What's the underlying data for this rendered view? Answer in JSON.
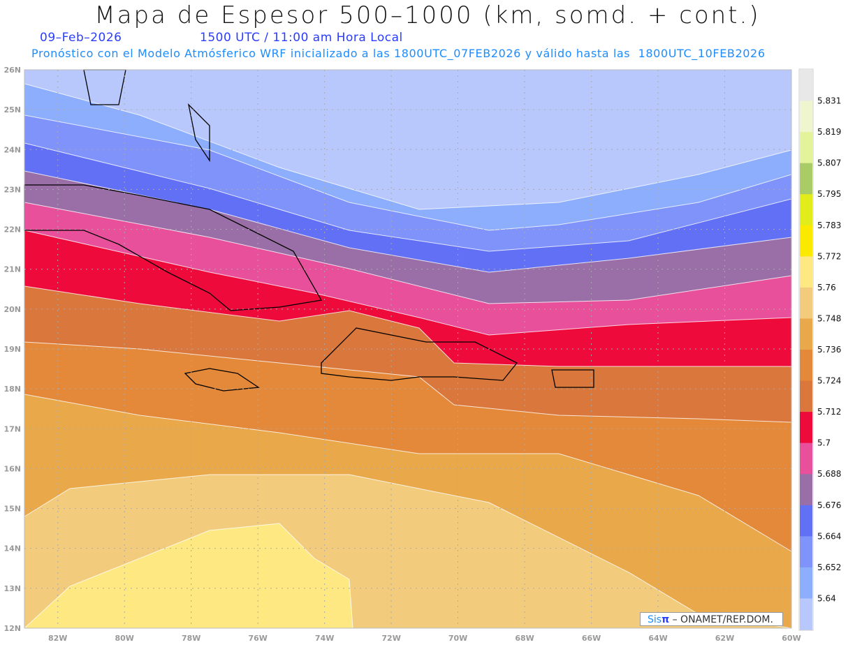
{
  "header": {
    "title": "Mapa de Espesor 500–1000 (km, somd. + cont.)",
    "date": "09–Feb–2026",
    "time": "1500 UTC / 11:00 am Hora Local",
    "description": "Pronóstico con el Modelo Atmósferico WRF inicializado a las 1800UTC_07FEB2026 y válido hasta las  1800UTC_10FEB2026"
  },
  "axes": {
    "lat_labels": [
      "26N",
      "25N",
      "24N",
      "23N",
      "22N",
      "21N",
      "20N",
      "19N",
      "18N",
      "17N",
      "16N",
      "15N",
      "14N",
      "13N",
      "12N"
    ],
    "lon_labels": [
      "82W",
      "80W",
      "78W",
      "76W",
      "74W",
      "72W",
      "70W",
      "68W",
      "66W",
      "64W",
      "62W",
      "60W"
    ]
  },
  "colorbar": {
    "labels": [
      "5.831",
      "5.819",
      "5.807",
      "5.795",
      "5.783",
      "5.772",
      "5.76",
      "5.748",
      "5.736",
      "5.724",
      "5.712",
      "5.7",
      "5.688",
      "5.676",
      "5.664",
      "5.652",
      "5.64"
    ],
    "colors": [
      "#e8e8e8",
      "#eef5cf",
      "#e3f39a",
      "#a9cc66",
      "#e1ec1a",
      "#fbea00",
      "#fde882",
      "#f2cc7c",
      "#e9a84a",
      "#e4893a",
      "#d9773c",
      "#ef0a3c",
      "#e8509b",
      "#9a6ea6",
      "#6270f5",
      "#7f93fa",
      "#8caefd",
      "#b8c8fd"
    ]
  },
  "footer": {
    "brand": "Sis",
    "brand_symbol": "π",
    "credit": "–  ONAMET/REP.DOM."
  }
}
